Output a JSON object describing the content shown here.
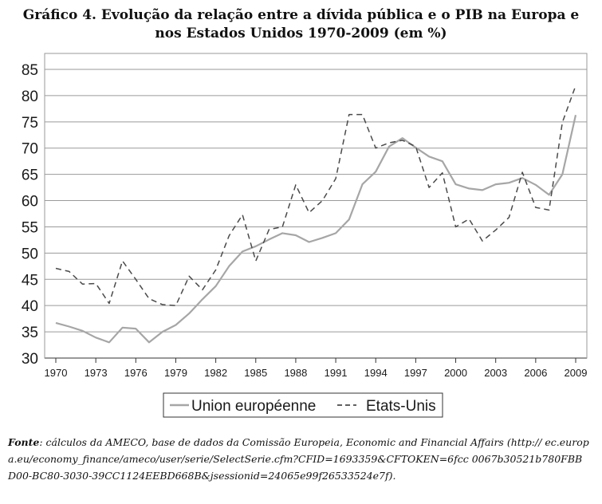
{
  "title_line1": "Gráfico 4. Evolução da relação entre a dívida pública e o PIB na Europa e",
  "title_line2": "nos Estados Unidos 1970-2009 (em %)",
  "source_label": "Fonte",
  "source_text": ": cálculos da AMECO, base de dados da Comissão Europeia, Economic and Financial Affairs (http:// ec.europa.eu/economy_finance/ameco/user/serie/SelectSerie.cfm?CFID=1693359&CFTOKEN=6fcc 0067b30521b780FBBD00-BC80-3030-39CC1124EEBD668B&jsessionid=24065e99f26533524e7f).",
  "colors": {
    "eu": "#a6a6a6",
    "us": "#4a4a4a",
    "axis": "#333333"
  },
  "chart_data": {
    "type": "line",
    "title": "Gráfico 4. Evolução da relação entre a dívida pública e o PIB na Europa e nos Estados Unidos 1970-2009 (em %)",
    "xlabel": "",
    "ylabel": "",
    "x": [
      1970,
      1971,
      1972,
      1973,
      1974,
      1975,
      1976,
      1977,
      1978,
      1979,
      1980,
      1981,
      1982,
      1983,
      1984,
      1985,
      1986,
      1987,
      1988,
      1989,
      1990,
      1991,
      1992,
      1993,
      1994,
      1995,
      1996,
      1997,
      1998,
      1999,
      2000,
      2001,
      2002,
      2003,
      2004,
      2005,
      2006,
      2007,
      2008,
      2009
    ],
    "xticks": [
      1970,
      1973,
      1976,
      1979,
      1982,
      1985,
      1988,
      1991,
      1994,
      1997,
      2000,
      2003,
      2006,
      2009
    ],
    "ylim": [
      30,
      85
    ],
    "yticks": [
      30,
      35,
      40,
      45,
      50,
      55,
      60,
      65,
      70,
      75,
      80,
      85
    ],
    "grid": "horizontal",
    "legend_position": "bottom",
    "series": [
      {
        "name": "Union européenne",
        "style": "solid",
        "values": [
          36.7,
          36.0,
          35.2,
          33.9,
          33.0,
          35.8,
          35.6,
          33.0,
          35.0,
          36.3,
          38.5,
          41.2,
          43.7,
          47.5,
          50.3,
          51.3,
          52.6,
          53.8,
          53.4,
          52.1,
          52.9,
          53.8,
          56.4,
          63.1,
          65.5,
          70.3,
          71.9,
          70.1,
          68.4,
          67.5,
          63.1,
          62.3,
          62.0,
          63.1,
          63.4,
          64.3,
          63.0,
          61.1,
          65.0,
          76.3
        ]
      },
      {
        "name": "Etats-Unis",
        "style": "dashed",
        "values": [
          47.1,
          46.5,
          44.1,
          44.2,
          40.4,
          48.5,
          45.0,
          41.3,
          40.2,
          40.0,
          45.6,
          43.0,
          46.8,
          53.3,
          57.3,
          48.5,
          54.5,
          55.0,
          63.0,
          57.7,
          60.0,
          64.2,
          76.4,
          76.4,
          70.0,
          71.0,
          71.5,
          70.3,
          62.5,
          65.3,
          55.0,
          56.5,
          52.3,
          54.4,
          56.8,
          65.4,
          58.7,
          58.2,
          74.9,
          81.9
        ]
      }
    ]
  }
}
